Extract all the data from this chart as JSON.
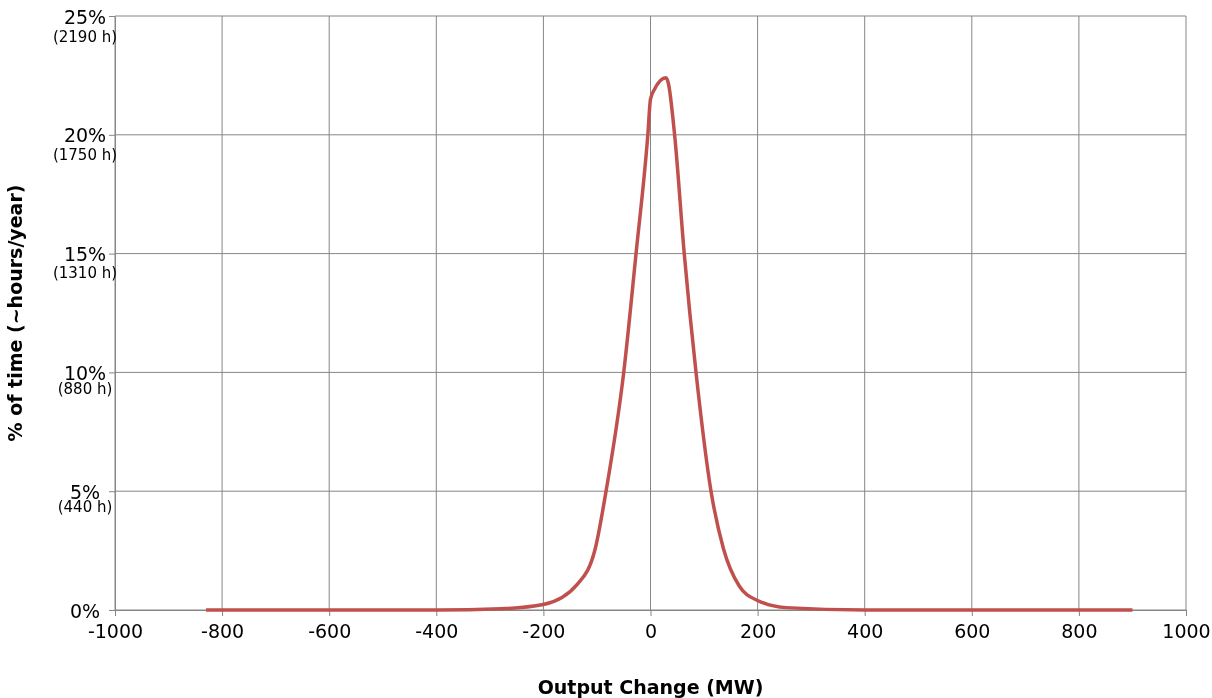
{
  "chart_data": {
    "type": "line",
    "xlabel": "Output Change (MW)",
    "y2label": "% of time (~hours/year)",
    "xlim": [
      -1000,
      1000
    ],
    "xticks": [
      -1000,
      -800,
      -600,
      -400,
      -200,
      0,
      200,
      400,
      600,
      800,
      1000
    ],
    "ylim": [
      0,
      25
    ],
    "yticks": [
      {
        "value": 0,
        "label": "0%"
      },
      {
        "value": 5,
        "label": "5%"
      },
      {
        "value": 10,
        "label": "10%"
      },
      {
        "value": 15,
        "label": "15%"
      },
      {
        "value": 20,
        "label": "20%"
      },
      {
        "value": 25,
        "label": "25%"
      }
    ],
    "y2lim": [
      55,
      2267
    ],
    "y2ticks": [
      {
        "value": 440,
        "label": "(440 h)"
      },
      {
        "value": 880,
        "label": "(880 h)"
      },
      {
        "value": 1310,
        "label": "(1310 h)"
      },
      {
        "value": 1750,
        "label": "(1750 h)"
      },
      {
        "value": 2190,
        "label": "(2190 h)"
      }
    ],
    "grid": true,
    "marker": "none",
    "line_style": "solid",
    "series": [
      {
        "color": "#c0504d",
        "x": [
          -830,
          -400,
          -280,
          -200,
          -136,
          -103,
          -83,
          -50,
          -27,
          -5,
          0,
          7,
          29,
          33,
          45,
          63,
          85,
          113,
          136,
          166,
          200,
          253,
          400,
          900
        ],
        "values": [
          0,
          0,
          0.05,
          0.23,
          1.1,
          2.6,
          5,
          10,
          15,
          20,
          21.5,
          21.9,
          22.4,
          22.2,
          20,
          15,
          10,
          5,
          2.6,
          1.0,
          0.4,
          0.1,
          0,
          0
        ]
      }
    ]
  }
}
